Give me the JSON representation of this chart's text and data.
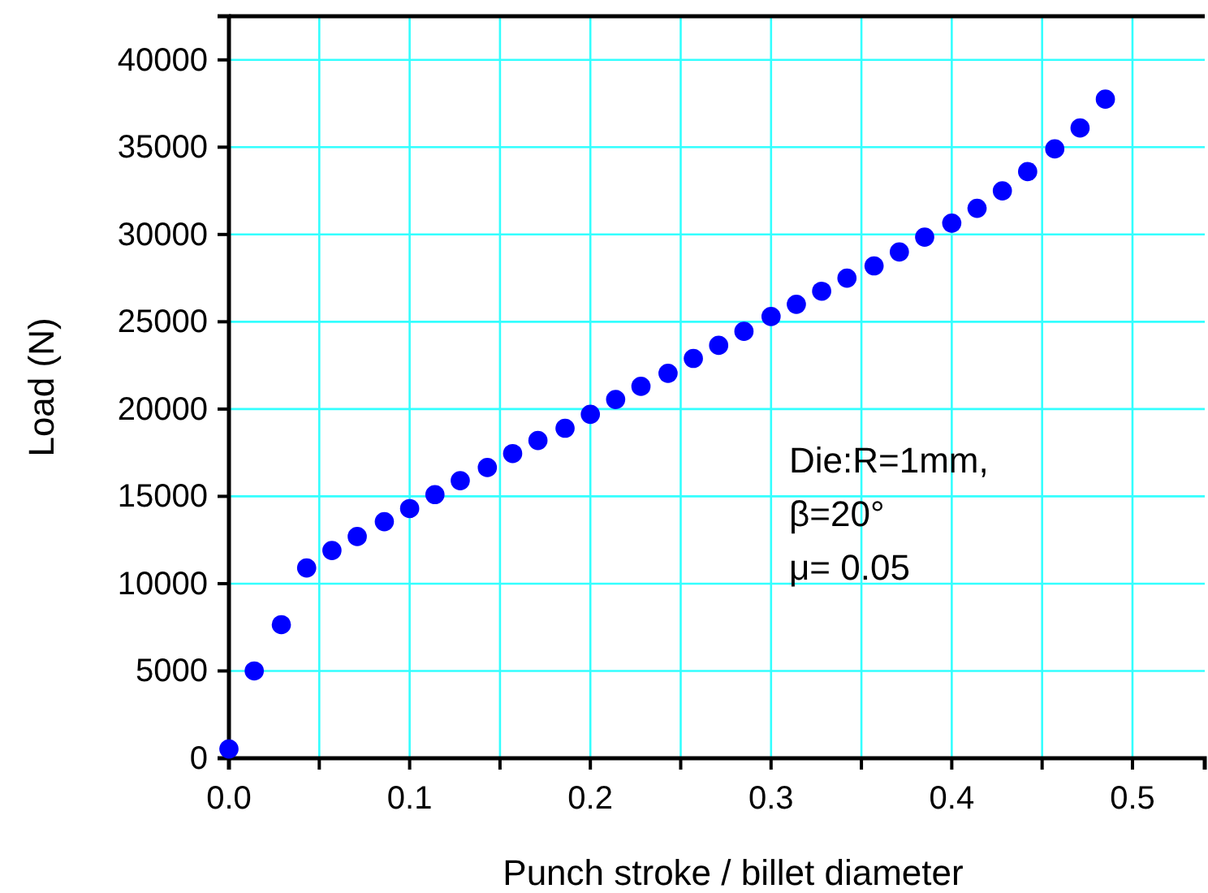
{
  "chart_data": {
    "type": "scatter",
    "xlabel": "Punch stroke / billet diameter",
    "ylabel": "Load (N)",
    "x": [
      0,
      0.014,
      0.029,
      0.043,
      0.057,
      0.071,
      0.086,
      0.1,
      0.114,
      0.128,
      0.143,
      0.157,
      0.171,
      0.186,
      0.2,
      0.214,
      0.228,
      0.243,
      0.257,
      0.271,
      0.285,
      0.3,
      0.314,
      0.328,
      0.342,
      0.357,
      0.371,
      0.385,
      0.4,
      0.414,
      0.428,
      0.442,
      0.457,
      0.471,
      0.485
    ],
    "series": [
      {
        "color": "#0000ff",
        "values": [
          530,
          5000,
          7650,
          10900,
          11900,
          12700,
          13550,
          14300,
          15100,
          15900,
          16650,
          17450,
          18200,
          18900,
          19700,
          20550,
          21300,
          22050,
          22900,
          23650,
          24450,
          25300,
          26000,
          26750,
          27500,
          28200,
          29000,
          29850,
          30650,
          31500,
          32500,
          33600,
          34900,
          36100,
          37750
        ]
      }
    ],
    "xlim": [
      0,
      0.54
    ],
    "ylim": [
      0,
      42500
    ],
    "xticks": [
      {
        "value": 0,
        "label": "0.0"
      },
      {
        "value": 0.05,
        "label": null
      },
      {
        "value": 0.1,
        "label": "0.1"
      },
      {
        "value": 0.15,
        "label": null
      },
      {
        "value": 0.2,
        "label": "0.2"
      },
      {
        "value": 0.25,
        "label": null
      },
      {
        "value": 0.3,
        "label": "0.3"
      },
      {
        "value": 0.35,
        "label": null
      },
      {
        "value": 0.4,
        "label": "0.4"
      },
      {
        "value": 0.45,
        "label": null
      },
      {
        "value": 0.5,
        "label": "0.5"
      }
    ],
    "yticks": [
      0,
      5000,
      10000,
      15000,
      20000,
      25000,
      30000,
      35000,
      40000
    ],
    "grid": true,
    "marker": "circle",
    "annotations": [
      "Die:R=1mm,",
      "β=20°",
      "μ= 0.05"
    ]
  }
}
